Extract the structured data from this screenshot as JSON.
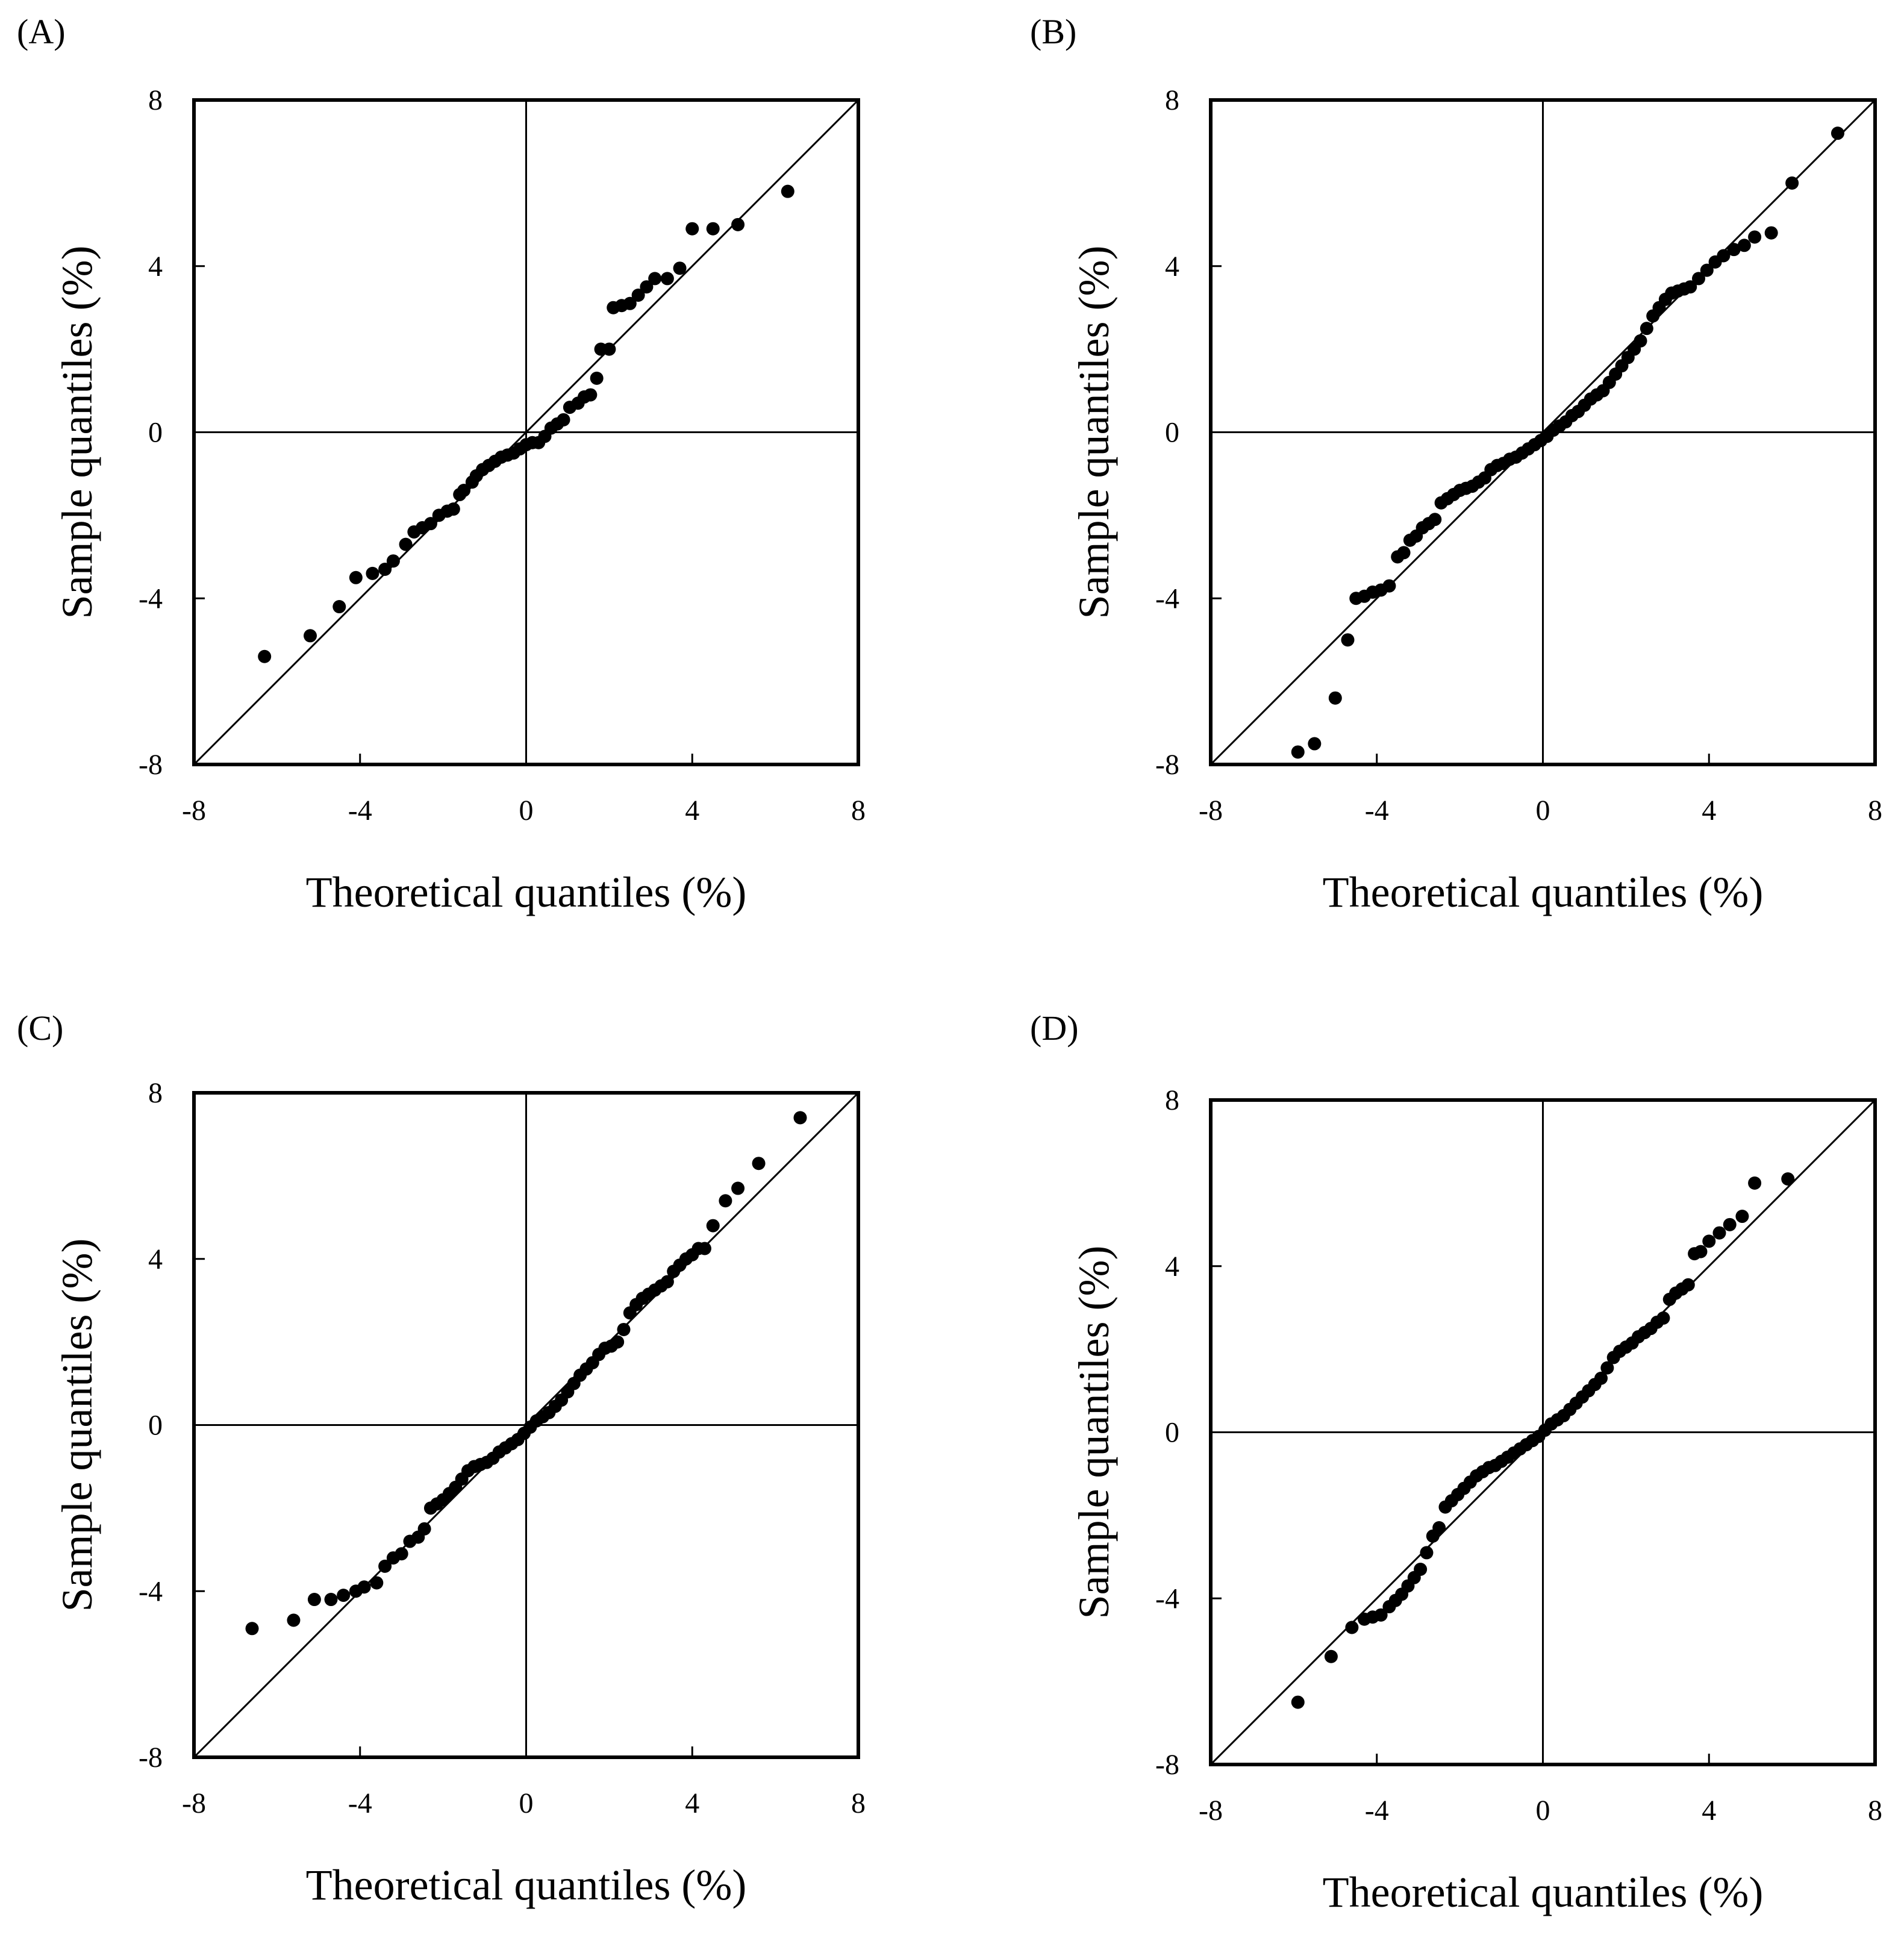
{
  "figure": {
    "panel_labels": [
      "(A)",
      "(B)",
      "(C)",
      "(D)"
    ],
    "xlabel": "Theoretical quantiles (%)",
    "ylabel": "Sample quantiles (%)",
    "tick_labels": [
      "-8",
      "-4",
      "0",
      "4",
      "8"
    ],
    "colors": {
      "points": "#000000",
      "axes": "#000000",
      "background": "#ffffff"
    }
  },
  "chart_data": [
    {
      "type": "scatter",
      "panel": "(A)",
      "title": "",
      "xlabel": "Theoretical quantiles (%)",
      "ylabel": "Sample quantiles (%)",
      "xlim": [
        -8,
        8
      ],
      "ylim": [
        -8,
        8
      ],
      "xticks": [
        -8,
        -4,
        0,
        4,
        8
      ],
      "yticks": [
        -8,
        -4,
        0,
        4,
        8
      ],
      "reference_line": "y = x",
      "points": [
        [
          -6.3,
          -5.4
        ],
        [
          -5.2,
          -4.9
        ],
        [
          -4.5,
          -4.2
        ],
        [
          -4.1,
          -3.5
        ],
        [
          -3.7,
          -3.4
        ],
        [
          -3.4,
          -3.3
        ],
        [
          -3.2,
          -3.1
        ],
        [
          -2.9,
          -2.7
        ],
        [
          -2.7,
          -2.4
        ],
        [
          -2.5,
          -2.3
        ],
        [
          -2.3,
          -2.2
        ],
        [
          -2.1,
          -2.0
        ],
        [
          -1.9,
          -1.9
        ],
        [
          -1.75,
          -1.85
        ],
        [
          -1.6,
          -1.5
        ],
        [
          -1.5,
          -1.4
        ],
        [
          -1.3,
          -1.2
        ],
        [
          -1.2,
          -1.05
        ],
        [
          -1.05,
          -0.9
        ],
        [
          -0.9,
          -0.8
        ],
        [
          -0.75,
          -0.7
        ],
        [
          -0.6,
          -0.6
        ],
        [
          -0.45,
          -0.55
        ],
        [
          -0.3,
          -0.5
        ],
        [
          -0.15,
          -0.4
        ],
        [
          0.0,
          -0.3
        ],
        [
          0.15,
          -0.25
        ],
        [
          0.3,
          -0.25
        ],
        [
          0.45,
          -0.1
        ],
        [
          0.6,
          0.1
        ],
        [
          0.75,
          0.2
        ],
        [
          0.9,
          0.3
        ],
        [
          1.05,
          0.6
        ],
        [
          1.25,
          0.7
        ],
        [
          1.4,
          0.85
        ],
        [
          1.55,
          0.9
        ],
        [
          1.7,
          1.3
        ],
        [
          1.8,
          2.0
        ],
        [
          2.0,
          2.0
        ],
        [
          2.1,
          3.0
        ],
        [
          2.3,
          3.05
        ],
        [
          2.5,
          3.1
        ],
        [
          2.7,
          3.3
        ],
        [
          2.9,
          3.5
        ],
        [
          3.1,
          3.7
        ],
        [
          3.4,
          3.7
        ],
        [
          3.7,
          3.95
        ],
        [
          4.0,
          4.9
        ],
        [
          4.5,
          4.9
        ],
        [
          5.1,
          5.0
        ],
        [
          6.3,
          5.8
        ]
      ]
    },
    {
      "type": "scatter",
      "panel": "(B)",
      "title": "",
      "xlabel": "Theoretical quantiles (%)",
      "ylabel": "Sample quantiles (%)",
      "xlim": [
        -8,
        8
      ],
      "ylim": [
        -8,
        8
      ],
      "xticks": [
        -8,
        -4,
        0,
        4,
        8
      ],
      "yticks": [
        -8,
        -4,
        0,
        4,
        8
      ],
      "reference_line": "y = x",
      "points": [
        [
          -5.9,
          -7.7
        ],
        [
          -5.5,
          -7.5
        ],
        [
          -5.0,
          -6.4
        ],
        [
          -4.7,
          -5.0
        ],
        [
          -4.5,
          -4.0
        ],
        [
          -4.3,
          -3.95
        ],
        [
          -4.1,
          -3.85
        ],
        [
          -3.9,
          -3.8
        ],
        [
          -3.7,
          -3.7
        ],
        [
          -3.5,
          -3.0
        ],
        [
          -3.35,
          -2.9
        ],
        [
          -3.2,
          -2.6
        ],
        [
          -3.05,
          -2.5
        ],
        [
          -2.9,
          -2.3
        ],
        [
          -2.75,
          -2.2
        ],
        [
          -2.6,
          -2.1
        ],
        [
          -2.45,
          -1.7
        ],
        [
          -2.3,
          -1.6
        ],
        [
          -2.15,
          -1.5
        ],
        [
          -2.0,
          -1.4
        ],
        [
          -1.85,
          -1.35
        ],
        [
          -1.7,
          -1.3
        ],
        [
          -1.55,
          -1.2
        ],
        [
          -1.4,
          -1.1
        ],
        [
          -1.25,
          -0.9
        ],
        [
          -1.1,
          -0.8
        ],
        [
          -0.95,
          -0.75
        ],
        [
          -0.8,
          -0.65
        ],
        [
          -0.65,
          -0.6
        ],
        [
          -0.5,
          -0.5
        ],
        [
          -0.35,
          -0.4
        ],
        [
          -0.2,
          -0.3
        ],
        [
          -0.05,
          -0.2
        ],
        [
          0.1,
          -0.1
        ],
        [
          0.25,
          0.05
        ],
        [
          0.4,
          0.15
        ],
        [
          0.55,
          0.25
        ],
        [
          0.7,
          0.4
        ],
        [
          0.85,
          0.5
        ],
        [
          1.0,
          0.65
        ],
        [
          1.15,
          0.8
        ],
        [
          1.3,
          0.9
        ],
        [
          1.45,
          1.0
        ],
        [
          1.6,
          1.2
        ],
        [
          1.75,
          1.4
        ],
        [
          1.9,
          1.6
        ],
        [
          2.05,
          1.8
        ],
        [
          2.2,
          2.0
        ],
        [
          2.35,
          2.2
        ],
        [
          2.5,
          2.5
        ],
        [
          2.65,
          2.8
        ],
        [
          2.8,
          3.0
        ],
        [
          2.95,
          3.2
        ],
        [
          3.1,
          3.35
        ],
        [
          3.25,
          3.4
        ],
        [
          3.4,
          3.45
        ],
        [
          3.55,
          3.5
        ],
        [
          3.75,
          3.7
        ],
        [
          3.95,
          3.9
        ],
        [
          4.15,
          4.1
        ],
        [
          4.35,
          4.25
        ],
        [
          4.6,
          4.4
        ],
        [
          4.85,
          4.5
        ],
        [
          5.1,
          4.7
        ],
        [
          5.5,
          4.8
        ],
        [
          6.0,
          6.0
        ],
        [
          7.1,
          7.2
        ]
      ]
    },
    {
      "type": "scatter",
      "panel": "(C)",
      "title": "",
      "xlabel": "Theoretical quantiles (%)",
      "ylabel": "Sample quantiles (%)",
      "xlim": [
        -8,
        8
      ],
      "ylim": [
        -8,
        8
      ],
      "xticks": [
        -8,
        -4,
        0,
        4,
        8
      ],
      "yticks": [
        -8,
        -4,
        0,
        4,
        8
      ],
      "reference_line": "y = x",
      "points": [
        [
          -6.6,
          -4.9
        ],
        [
          -5.6,
          -4.7
        ],
        [
          -5.1,
          -4.2
        ],
        [
          -4.7,
          -4.2
        ],
        [
          -4.4,
          -4.1
        ],
        [
          -4.1,
          -4.0
        ],
        [
          -3.9,
          -3.9
        ],
        [
          -3.6,
          -3.8
        ],
        [
          -3.4,
          -3.4
        ],
        [
          -3.2,
          -3.2
        ],
        [
          -3.0,
          -3.1
        ],
        [
          -2.8,
          -2.8
        ],
        [
          -2.6,
          -2.7
        ],
        [
          -2.45,
          -2.5
        ],
        [
          -2.3,
          -2.0
        ],
        [
          -2.15,
          -1.9
        ],
        [
          -2.0,
          -1.8
        ],
        [
          -1.85,
          -1.65
        ],
        [
          -1.7,
          -1.5
        ],
        [
          -1.55,
          -1.3
        ],
        [
          -1.4,
          -1.1
        ],
        [
          -1.25,
          -1.0
        ],
        [
          -1.1,
          -0.95
        ],
        [
          -0.95,
          -0.9
        ],
        [
          -0.8,
          -0.8
        ],
        [
          -0.65,
          -0.65
        ],
        [
          -0.5,
          -0.55
        ],
        [
          -0.35,
          -0.45
        ],
        [
          -0.2,
          -0.35
        ],
        [
          -0.05,
          -0.2
        ],
        [
          0.1,
          -0.05
        ],
        [
          0.25,
          0.1
        ],
        [
          0.4,
          0.2
        ],
        [
          0.55,
          0.3
        ],
        [
          0.7,
          0.45
        ],
        [
          0.85,
          0.6
        ],
        [
          1.0,
          0.8
        ],
        [
          1.15,
          1.0
        ],
        [
          1.3,
          1.2
        ],
        [
          1.45,
          1.35
        ],
        [
          1.6,
          1.5
        ],
        [
          1.75,
          1.7
        ],
        [
          1.9,
          1.85
        ],
        [
          2.05,
          1.9
        ],
        [
          2.2,
          2.0
        ],
        [
          2.35,
          2.3
        ],
        [
          2.5,
          2.7
        ],
        [
          2.65,
          2.9
        ],
        [
          2.8,
          3.05
        ],
        [
          2.95,
          3.15
        ],
        [
          3.1,
          3.25
        ],
        [
          3.25,
          3.35
        ],
        [
          3.4,
          3.45
        ],
        [
          3.55,
          3.7
        ],
        [
          3.7,
          3.85
        ],
        [
          3.85,
          4.0
        ],
        [
          4.0,
          4.1
        ],
        [
          4.15,
          4.25
        ],
        [
          4.3,
          4.25
        ],
        [
          4.5,
          4.8
        ],
        [
          4.8,
          5.4
        ],
        [
          5.1,
          5.7
        ],
        [
          5.6,
          6.3
        ],
        [
          6.6,
          7.4
        ]
      ]
    },
    {
      "type": "scatter",
      "panel": "(D)",
      "title": "",
      "xlabel": "Theoretical quantiles (%)",
      "ylabel": "Sample quantiles (%)",
      "xlim": [
        -8,
        8
      ],
      "ylim": [
        -8,
        8
      ],
      "xticks": [
        -8,
        -4,
        0,
        4,
        8
      ],
      "yticks": [
        -8,
        -4,
        0,
        4,
        8
      ],
      "reference_line": "y = x",
      "points": [
        [
          -5.9,
          -6.5
        ],
        [
          -5.1,
          -5.4
        ],
        [
          -4.6,
          -4.7
        ],
        [
          -4.3,
          -4.5
        ],
        [
          -4.1,
          -4.45
        ],
        [
          -3.9,
          -4.4
        ],
        [
          -3.7,
          -4.2
        ],
        [
          -3.55,
          -4.05
        ],
        [
          -3.4,
          -3.9
        ],
        [
          -3.25,
          -3.7
        ],
        [
          -3.1,
          -3.5
        ],
        [
          -2.95,
          -3.3
        ],
        [
          -2.8,
          -2.9
        ],
        [
          -2.65,
          -2.5
        ],
        [
          -2.5,
          -2.3
        ],
        [
          -2.35,
          -1.8
        ],
        [
          -2.2,
          -1.65
        ],
        [
          -2.05,
          -1.5
        ],
        [
          -1.9,
          -1.35
        ],
        [
          -1.75,
          -1.2
        ],
        [
          -1.6,
          -1.05
        ],
        [
          -1.45,
          -0.95
        ],
        [
          -1.3,
          -0.85
        ],
        [
          -1.15,
          -0.8
        ],
        [
          -1.0,
          -0.7
        ],
        [
          -0.85,
          -0.6
        ],
        [
          -0.7,
          -0.5
        ],
        [
          -0.55,
          -0.4
        ],
        [
          -0.4,
          -0.3
        ],
        [
          -0.25,
          -0.2
        ],
        [
          -0.1,
          -0.1
        ],
        [
          0.05,
          0.05
        ],
        [
          0.2,
          0.2
        ],
        [
          0.35,
          0.3
        ],
        [
          0.5,
          0.4
        ],
        [
          0.65,
          0.55
        ],
        [
          0.8,
          0.7
        ],
        [
          0.95,
          0.85
        ],
        [
          1.1,
          1.0
        ],
        [
          1.25,
          1.15
        ],
        [
          1.4,
          1.3
        ],
        [
          1.55,
          1.55
        ],
        [
          1.7,
          1.8
        ],
        [
          1.85,
          1.95
        ],
        [
          2.0,
          2.05
        ],
        [
          2.15,
          2.15
        ],
        [
          2.3,
          2.3
        ],
        [
          2.45,
          2.4
        ],
        [
          2.6,
          2.5
        ],
        [
          2.75,
          2.65
        ],
        [
          2.9,
          2.75
        ],
        [
          3.05,
          3.2
        ],
        [
          3.2,
          3.35
        ],
        [
          3.35,
          3.45
        ],
        [
          3.5,
          3.55
        ],
        [
          3.65,
          4.3
        ],
        [
          3.8,
          4.35
        ],
        [
          4.0,
          4.6
        ],
        [
          4.25,
          4.8
        ],
        [
          4.5,
          5.0
        ],
        [
          4.8,
          5.2
        ],
        [
          5.1,
          6.0
        ],
        [
          5.9,
          6.1
        ]
      ]
    }
  ]
}
